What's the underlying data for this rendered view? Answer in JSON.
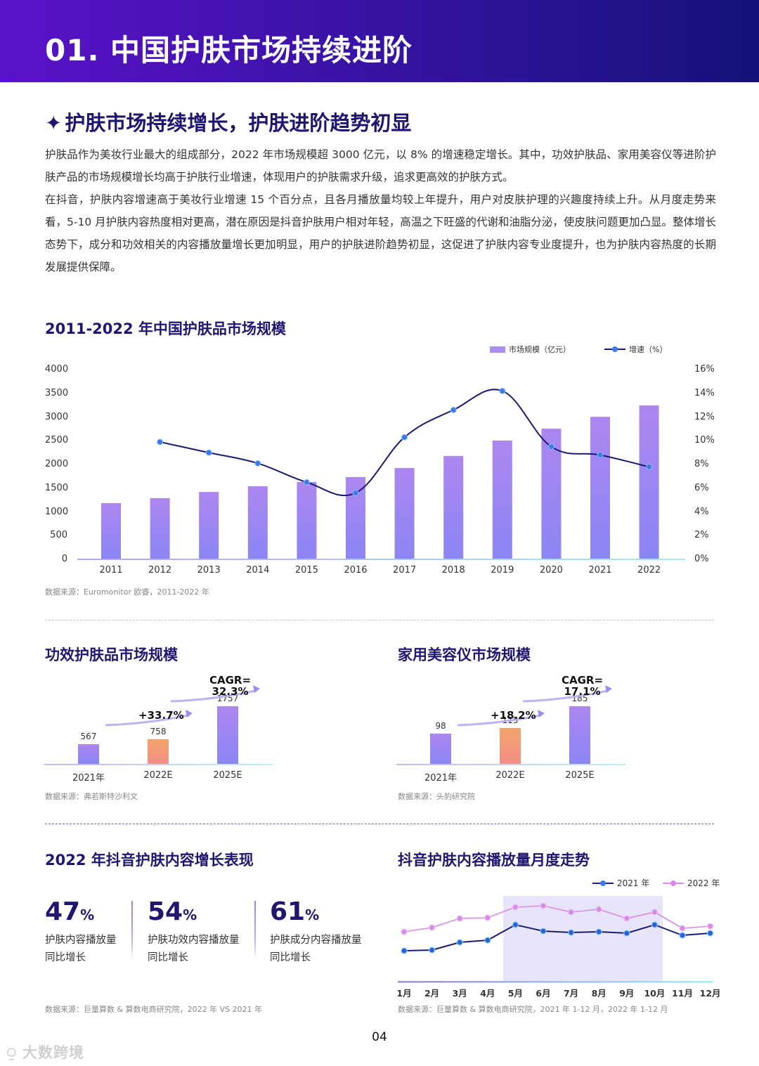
{
  "banner": {
    "title": "01. 中国护肤市场持续进阶"
  },
  "section": {
    "star": "✦",
    "heading": "护肤市场持续增长，护肤进阶趋势初显",
    "paragraphs": [
      "护肤品作为美妆行业最大的组成部分，2022 年市场规模超 3000 亿元，以 8% 的增速稳定增长。其中，功效护肤品、家用美容仪等进阶护肤产品的市场规模增长均高于护肤行业增速，体现用户的护肤需求升级，追求更高效的护肤方式。",
      "在抖音，护肤内容增速高于美妆行业增速 15 个百分点，且各月播放量均较上年提升，用户对皮肤护理的兴趣度持续上升。从月度走势来看，5-10 月护肤内容热度相对更高，潜在原因是抖音护肤用户相对年轻，高温之下旺盛的代谢和油脂分泌，使皮肤问题更加凸显。整体增长态势下，成分和功效相关的内容播放量增长更加明显，用户的护肤进阶趋势初显，这促进了护肤内容专业度提升，也为护肤内容热度的长期发展提供保障。"
    ]
  },
  "main_chart": {
    "title": "2011-2022 年中国护肤品市场规模",
    "legend": {
      "bar": "市场规模（亿元）",
      "line": "增速（%）"
    },
    "source": "数据来源：Euromonitor 欧睿，2011-2022 年",
    "left_ticks": [
      "4000",
      "3500",
      "3000",
      "2500",
      "2000",
      "1500",
      "1000",
      "500",
      "0"
    ],
    "right_ticks": [
      "16%",
      "14%",
      "12%",
      "10%",
      "8%",
      "6%",
      "4%",
      "2%",
      "0%"
    ]
  },
  "efficacy_chart": {
    "title": "功效护肤品市场规模",
    "annot_yoy": "+33.7%",
    "annot_cagr_1": "CAGR=",
    "annot_cagr_2": "32.3%",
    "source": "数据来源：弗若斯特沙利文",
    "categories": [
      "2021年",
      "2022E",
      "2025E"
    ],
    "values": [
      "567",
      "758",
      "1757"
    ]
  },
  "device_chart": {
    "title": "家用美容仪市场规模",
    "annot_yoy": "+18.2%",
    "annot_cagr_1": "CAGR=",
    "annot_cagr_2": "17.1%",
    "source": "数据来源：头豹研究院",
    "categories": [
      "2021年",
      "2022E",
      "2025E"
    ],
    "values": [
      "98",
      "115",
      "185"
    ]
  },
  "growth_stats": {
    "title": "2022 年抖音护肤内容增长表现",
    "items": [
      {
        "num": "47",
        "pct": "%",
        "line1": "护肤内容播放量",
        "line2": "同比增长"
      },
      {
        "num": "54",
        "pct": "%",
        "line1": "护肤功效内容播放量",
        "line2": "同比增长"
      },
      {
        "num": "61",
        "pct": "%",
        "line1": "护肤成分内容播放量",
        "line2": "同比增长"
      }
    ],
    "source": "数据来源：巨量算数 & 算数电商研究院，2022 年 VS 2021 年"
  },
  "monthly_chart": {
    "title": "抖音护肤内容播放量月度走势",
    "legend": [
      "2021 年",
      "2022 年"
    ],
    "months": [
      "1月",
      "2月",
      "3月",
      "4月",
      "5月",
      "6月",
      "7月",
      "8月",
      "9月",
      "10月",
      "11月",
      "12月"
    ],
    "source": "数据来源：巨量算数 & 算数电商研究院，2021 年 1-12 月，2022 年 1-12 月"
  },
  "footer": {
    "page": "04",
    "watermark": "大数跨境"
  },
  "colors": {
    "brand_dark": "#1e1670",
    "bar_purple": "#a88ef0",
    "line_navy": "#1a1a6e",
    "dot_blue": "#3b7be8",
    "line_pink": "#d68be8",
    "bar_orange": "#f59a7c",
    "highlight": "#e8e4fb"
  },
  "chart_data": [
    {
      "type": "bar",
      "title": "2011-2022 年中国护肤品市场规模",
      "categories": [
        "2011",
        "2012",
        "2013",
        "2014",
        "2015",
        "2016",
        "2017",
        "2018",
        "2019",
        "2020",
        "2021",
        "2022"
      ],
      "series": [
        {
          "name": "市场规模（亿元）",
          "type": "bar",
          "axis": "left",
          "values": [
            1185,
            1290,
            1420,
            1540,
            1630,
            1735,
            1925,
            2180,
            2505,
            2755,
            3005,
            3245
          ]
        },
        {
          "name": "增速（%）",
          "type": "line",
          "axis": "right",
          "values": [
            null,
            9.9,
            9.0,
            8.1,
            6.5,
            5.6,
            10.3,
            12.6,
            14.2,
            9.5,
            8.8,
            7.8
          ]
        }
      ],
      "xlabel": "",
      "ylabel": "",
      "ylim": [
        0,
        4000
      ],
      "y2lim": [
        0,
        16
      ],
      "legend_position": "top-right",
      "grid": false,
      "source": "数据来源：Euromonitor 欧睿，2011-2022 年"
    },
    {
      "type": "bar",
      "title": "功效护肤品市场规模",
      "categories": [
        "2021年",
        "2022E",
        "2025E"
      ],
      "values": [
        567,
        758,
        1757
      ],
      "annotations": [
        "+33.7%",
        "CAGR=32.3%"
      ],
      "source": "数据来源：弗若斯特沙利文"
    },
    {
      "type": "bar",
      "title": "家用美容仪市场规模",
      "categories": [
        "2021年",
        "2022E",
        "2025E"
      ],
      "values": [
        98,
        115,
        185
      ],
      "annotations": [
        "+18.2%",
        "CAGR=17.1%"
      ],
      "source": "数据来源：头豹研究院"
    },
    {
      "type": "line",
      "title": "抖音护肤内容播放量月度走势",
      "categories": [
        "1月",
        "2月",
        "3月",
        "4月",
        "5月",
        "6月",
        "7月",
        "8月",
        "9月",
        "10月",
        "11月",
        "12月"
      ],
      "series": [
        {
          "name": "2021 年",
          "values": [
            44,
            45,
            56,
            59,
            81,
            72,
            70,
            71,
            69,
            81,
            66,
            69
          ]
        },
        {
          "name": "2022 年",
          "values": [
            71,
            77,
            90,
            91,
            106,
            108,
            99,
            103,
            90,
            99,
            76,
            79
          ]
        }
      ],
      "note": "no y-axis shown; values are relative heights read from pixels",
      "highlight_range": [
        "5月",
        "10月"
      ],
      "legend_position": "top-right",
      "source": "数据来源：巨量算数 & 算数电商研究院，2021 年 1-12 月，2022 年 1-12 月"
    }
  ]
}
